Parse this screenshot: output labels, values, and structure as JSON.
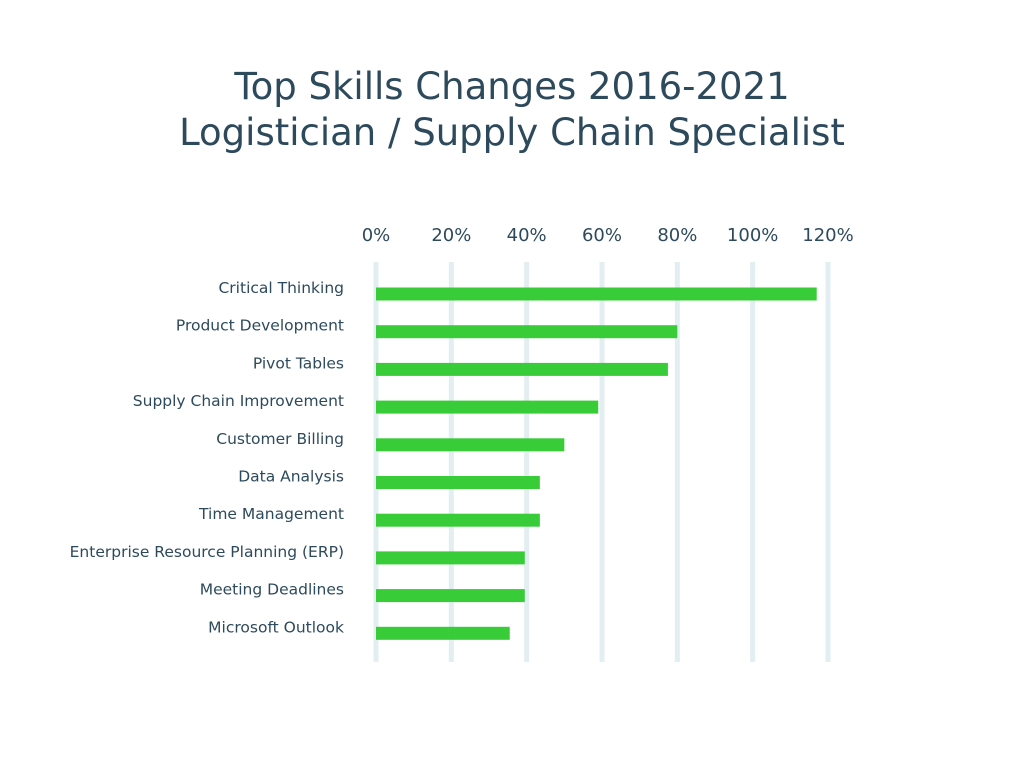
{
  "chart_data": {
    "type": "bar",
    "orientation": "horizontal",
    "title": [
      "Top Skills Changes 2016-2021",
      "Logistician / Supply Chain Specialist"
    ],
    "categories": [
      "Critical Thinking",
      "Product Development",
      "Pivot Tables",
      "Supply Chain Improvement",
      "Customer Billing",
      "Data Analysis",
      "Time Management",
      "Enterprise Resource Planning  (ERP)",
      "Meeting Deadlines",
      "Microsoft Outlook"
    ],
    "values": [
      117,
      80,
      77.5,
      59,
      50,
      43.5,
      43.5,
      39.5,
      39.5,
      35.5
    ],
    "xlim": [
      0,
      120
    ],
    "ticks": [
      0,
      20,
      40,
      60,
      80,
      100,
      120
    ],
    "tick_labels": [
      "0%",
      "20%",
      "40%",
      "60%",
      "80%",
      "100%",
      "120%"
    ],
    "xlabel": "",
    "ylabel": "",
    "grid": "vertical",
    "legend": "none",
    "colors": {
      "bar": "#39cc39",
      "grid": "#e3eef2",
      "text": "#2d4a5c"
    }
  }
}
